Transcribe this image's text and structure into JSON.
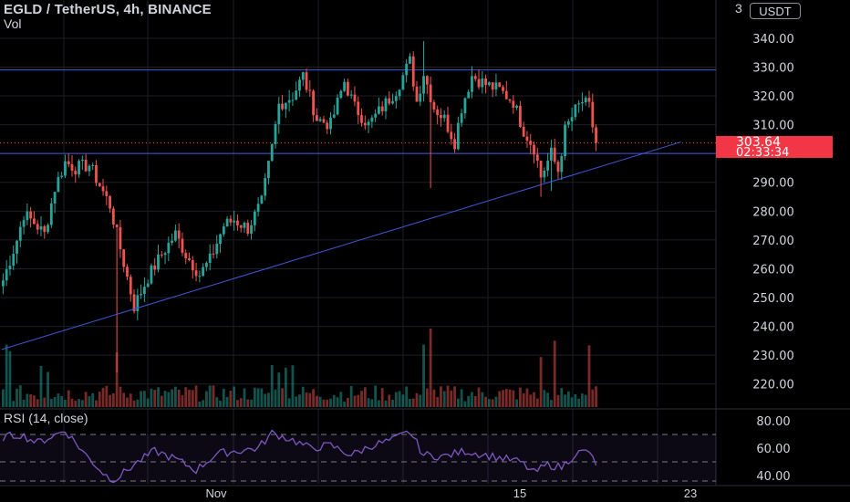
{
  "header": {
    "title": "EGLD / TetherUS, 4h, BINANCE",
    "vol_label": "Vol",
    "currency_button": "USDT",
    "corner_text": "3"
  },
  "rsi_label": "RSI (14, close)",
  "last_price": {
    "price": "303.64",
    "countdown": "02:33:34"
  },
  "colors": {
    "background": "#000000",
    "up": "#26a69a",
    "down": "#ef5350",
    "trendline": "#3f59d9",
    "rsi_line": "#7e57c2",
    "price_tag": "#f23645",
    "grid": "#1c1f26"
  },
  "chart_data": [
    {
      "type": "candlestick",
      "title": "EGLD / TetherUS, 4h, BINANCE",
      "ylim": [
        212,
        352
      ],
      "y_ticks": [
        220,
        230,
        240,
        250,
        260,
        270,
        280,
        290,
        300,
        310,
        320,
        330,
        340
      ],
      "x_ticks": [
        "Nov",
        "15",
        "23"
      ],
      "grid": true,
      "horizontal_lines": [
        329,
        300
      ],
      "trendline": {
        "from_bar": 0,
        "from_price": 232,
        "to_bar": 197,
        "to_price": 304
      },
      "last_price": 303.64,
      "ohlc_waypoints": [
        [
          0,
          256
        ],
        [
          4,
          270
        ],
        [
          6,
          279
        ],
        [
          9,
          276
        ],
        [
          12,
          272
        ],
        [
          15,
          288
        ],
        [
          18,
          297
        ],
        [
          21,
          295
        ],
        [
          25,
          296
        ],
        [
          28,
          289
        ],
        [
          31,
          282
        ],
        [
          35,
          262
        ],
        [
          38,
          247
        ],
        [
          42,
          257
        ],
        [
          46,
          265
        ],
        [
          50,
          272
        ],
        [
          53,
          265
        ],
        [
          57,
          258
        ],
        [
          60,
          263
        ],
        [
          64,
          275
        ],
        [
          67,
          277
        ],
        [
          71,
          274
        ],
        [
          75,
          283
        ],
        [
          78,
          302
        ],
        [
          80,
          317
        ],
        [
          84,
          320
        ],
        [
          87,
          327
        ],
        [
          91,
          312
        ],
        [
          95,
          310
        ],
        [
          99,
          325
        ],
        [
          102,
          316
        ],
        [
          106,
          310
        ],
        [
          110,
          316
        ],
        [
          114,
          322
        ],
        [
          118,
          332
        ],
        [
          120,
          318
        ],
        [
          122,
          328
        ],
        [
          125,
          316
        ],
        [
          128,
          312
        ],
        [
          131,
          304
        ],
        [
          133,
          316
        ],
        [
          136,
          327
        ],
        [
          140,
          324
        ],
        [
          144,
          322
        ],
        [
          148,
          318
        ],
        [
          151,
          308
        ],
        [
          154,
          302
        ],
        [
          156,
          292
        ],
        [
          159,
          300
        ],
        [
          161,
          294
        ],
        [
          163,
          308
        ],
        [
          166,
          315
        ],
        [
          168,
          318
        ],
        [
          170,
          316
        ],
        [
          172,
          303
        ]
      ]
    },
    {
      "type": "bar",
      "name": "Vol",
      "description": "volume histogram at the bottom of the price pane"
    },
    {
      "type": "line",
      "name": "RSI (14, close)",
      "ylim": [
        34,
        86
      ],
      "y_ticks": [
        40,
        60,
        80
      ],
      "band": [
        30,
        70
      ],
      "mid": 50,
      "waypoints": [
        [
          0,
          68
        ],
        [
          5,
          70
        ],
        [
          10,
          64
        ],
        [
          18,
          73
        ],
        [
          24,
          55
        ],
        [
          29,
          42
        ],
        [
          32,
          36
        ],
        [
          38,
          48
        ],
        [
          44,
          58
        ],
        [
          50,
          52
        ],
        [
          56,
          44
        ],
        [
          62,
          56
        ],
        [
          68,
          58
        ],
        [
          74,
          60
        ],
        [
          78,
          71
        ],
        [
          84,
          66
        ],
        [
          89,
          60
        ],
        [
          95,
          62
        ],
        [
          101,
          55
        ],
        [
          107,
          62
        ],
        [
          113,
          66
        ],
        [
          118,
          72
        ],
        [
          122,
          55
        ],
        [
          128,
          54
        ],
        [
          134,
          58
        ],
        [
          140,
          55
        ],
        [
          146,
          52
        ],
        [
          150,
          50
        ],
        [
          154,
          42
        ],
        [
          158,
          48
        ],
        [
          162,
          46
        ],
        [
          166,
          56
        ],
        [
          170,
          58
        ],
        [
          172,
          46
        ]
      ]
    }
  ]
}
